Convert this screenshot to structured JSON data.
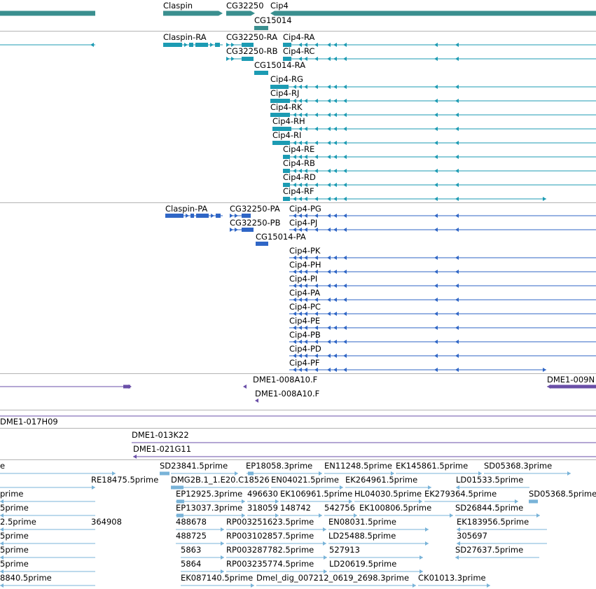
{
  "colors": {
    "gene": "#3a8f8f",
    "transcript": "#1c9bb3",
    "protein": "#2f66c6",
    "clone": "#6a4fa8",
    "est": "#79b3d8",
    "separator": "#b4b4b4"
  },
  "tracks": {
    "gene": {
      "name": "gene-track",
      "labels": [
        {
          "text": "Claspin",
          "name": "gene-claspin"
        },
        {
          "text": "CG32250",
          "name": "gene-cg32250"
        },
        {
          "text": "Cip4",
          "name": "gene-cip4"
        },
        {
          "text": "CG15014",
          "name": "gene-cg15014"
        }
      ]
    },
    "transcript": {
      "name": "transcript-track",
      "labels": [
        {
          "text": "Claspin-RA",
          "name": "transcript-claspin-ra"
        },
        {
          "text": "CG32250-RA",
          "name": "transcript-cg32250-ra"
        },
        {
          "text": "Cip4-RA",
          "name": "transcript-cip4-ra"
        },
        {
          "text": "CG32250-RB",
          "name": "transcript-cg32250-rb"
        },
        {
          "text": "Cip4-RC",
          "name": "transcript-cip4-rc"
        },
        {
          "text": "CG15014-RA",
          "name": "transcript-cg15014-ra"
        },
        {
          "text": "Cip4-RG",
          "name": "transcript-cip4-rg"
        },
        {
          "text": "Cip4-RJ",
          "name": "transcript-cip4-rj"
        },
        {
          "text": "Cip4-RK",
          "name": "transcript-cip4-rk"
        },
        {
          "text": "Cip4-RH",
          "name": "transcript-cip4-rh"
        },
        {
          "text": "Cip4-RI",
          "name": "transcript-cip4-ri"
        },
        {
          "text": "Cip4-RE",
          "name": "transcript-cip4-re"
        },
        {
          "text": "Cip4-RB",
          "name": "transcript-cip4-rb"
        },
        {
          "text": "Cip4-RD",
          "name": "transcript-cip4-rd"
        },
        {
          "text": "Cip4-RF",
          "name": "transcript-cip4-rf"
        }
      ]
    },
    "protein": {
      "name": "protein-track",
      "labels": [
        {
          "text": "Claspin-PA",
          "name": "protein-claspin-pa"
        },
        {
          "text": "CG32250-PA",
          "name": "protein-cg32250-pa"
        },
        {
          "text": "Cip4-PG",
          "name": "protein-cip4-pg"
        },
        {
          "text": "CG32250-PB",
          "name": "protein-cg32250-pb"
        },
        {
          "text": "Cip4-PJ",
          "name": "protein-cip4-pj"
        },
        {
          "text": "CG15014-PA",
          "name": "protein-cg15014-pa"
        },
        {
          "text": "Cip4-PK",
          "name": "protein-cip4-pk"
        },
        {
          "text": "Cip4-PH",
          "name": "protein-cip4-ph"
        },
        {
          "text": "Cip4-PI",
          "name": "protein-cip4-pi"
        },
        {
          "text": "Cip4-PA",
          "name": "protein-cip4-pa"
        },
        {
          "text": "Cip4-PC",
          "name": "protein-cip4-pc"
        },
        {
          "text": "Cip4-PE",
          "name": "protein-cip4-pe"
        },
        {
          "text": "Cip4-PB",
          "name": "protein-cip4-pb"
        },
        {
          "text": "Cip4-PD",
          "name": "protein-cip4-pd"
        },
        {
          "text": "Cip4-PF",
          "name": "protein-cip4-pf"
        }
      ]
    },
    "clone": {
      "name": "clone-track",
      "labels": [
        {
          "text": "DME1-008A10.F",
          "name": "clone-dme1-008a10-f-1"
        },
        {
          "text": "DME1-009N",
          "name": "clone-dme1-009n"
        },
        {
          "text": "DME1-008A10.F",
          "name": "clone-dme1-008a10-f-2"
        }
      ]
    },
    "bac": {
      "name": "bac-track",
      "labels": [
        {
          "text": "DME1-017H09",
          "name": "bac-dme1-017h09"
        },
        {
          "text": "DME1-013K22",
          "name": "bac-dme1-013k22"
        },
        {
          "text": "DME1-021G11",
          "name": "bac-dme1-021g11"
        }
      ]
    },
    "est": {
      "name": "est-track",
      "labels": [
        {
          "text": "e",
          "name": "est-e"
        },
        {
          "text": "SD23841.5prime",
          "name": "est-sd23841"
        },
        {
          "text": "EP18058.3prime",
          "name": "est-ep18058"
        },
        {
          "text": "EN11248.5prime",
          "name": "est-en11248"
        },
        {
          "text": "EK145861.5prime",
          "name": "est-ek145861"
        },
        {
          "text": "SD05368.3prime",
          "name": "est-sd05368-3"
        },
        {
          "text": "RE18475.5prime",
          "name": "est-re18475"
        },
        {
          "text": "DMG2B.1_1.E20.C18526",
          "name": "est-dmg2b"
        },
        {
          "text": "EN04021.5prime",
          "name": "est-en04021"
        },
        {
          "text": "EK264961.5prime",
          "name": "est-ek264961"
        },
        {
          "text": "LD01533.5prime",
          "name": "est-ld01533"
        },
        {
          "text": "prime",
          "name": "est-prime-1"
        },
        {
          "text": "EP12925.3prime",
          "name": "est-ep12925"
        },
        {
          "text": "496630",
          "name": "est-496630"
        },
        {
          "text": "EK106961.5prime",
          "name": "est-ek106961"
        },
        {
          "text": "HL04030.5prime",
          "name": "est-hl04030"
        },
        {
          "text": "EK279364.5prime",
          "name": "est-ek279364"
        },
        {
          "text": "SD05368.5prime",
          "name": "est-sd05368-5"
        },
        {
          "text": "5prime",
          "name": "est-5prime-1"
        },
        {
          "text": "EP13037.3prime",
          "name": "est-ep13037"
        },
        {
          "text": "318059",
          "name": "est-318059"
        },
        {
          "text": "148742",
          "name": "est-148742"
        },
        {
          "text": "542756",
          "name": "est-542756"
        },
        {
          "text": "EK100806.5prime",
          "name": "est-ek100806"
        },
        {
          "text": "SD26844.5prime",
          "name": "est-sd26844"
        },
        {
          "text": "2.5prime",
          "name": "est-2-5prime"
        },
        {
          "text": "364908",
          "name": "est-364908"
        },
        {
          "text": "488678",
          "name": "est-488678"
        },
        {
          "text": "RP003251623.5prime",
          "name": "est-rp003251623"
        },
        {
          "text": "EN08031.5prime",
          "name": "est-en08031"
        },
        {
          "text": "EK183956.5prime",
          "name": "est-ek183956"
        },
        {
          "text": "5prime",
          "name": "est-5prime-2"
        },
        {
          "text": "488725",
          "name": "est-488725"
        },
        {
          "text": "RP003102857.5prime",
          "name": "est-rp003102857"
        },
        {
          "text": "LD25488.5prime",
          "name": "est-ld25488"
        },
        {
          "text": "305697",
          "name": "est-305697"
        },
        {
          "text": "5prime",
          "name": "est-5prime-3"
        },
        {
          "text": "5863",
          "name": "est-5863"
        },
        {
          "text": "RP003287782.5prime",
          "name": "est-rp003287782"
        },
        {
          "text": "527913",
          "name": "est-527913"
        },
        {
          "text": "SD27637.5prime",
          "name": "est-sd27637"
        },
        {
          "text": "5prime",
          "name": "est-5prime-4"
        },
        {
          "text": "5864",
          "name": "est-5864"
        },
        {
          "text": "RP003235774.5prime",
          "name": "est-rp003235774"
        },
        {
          "text": "LD20619.5prime",
          "name": "est-ld20619"
        },
        {
          "text": "8840.5prime",
          "name": "est-8840"
        },
        {
          "text": "EK087140.5prime",
          "name": "est-ek087140"
        },
        {
          "text": "Dmel_dig_007212_0619_2698.3prime",
          "name": "est-dmel-dig"
        },
        {
          "text": "CK01013.3prime",
          "name": "est-ck01013"
        }
      ]
    }
  }
}
